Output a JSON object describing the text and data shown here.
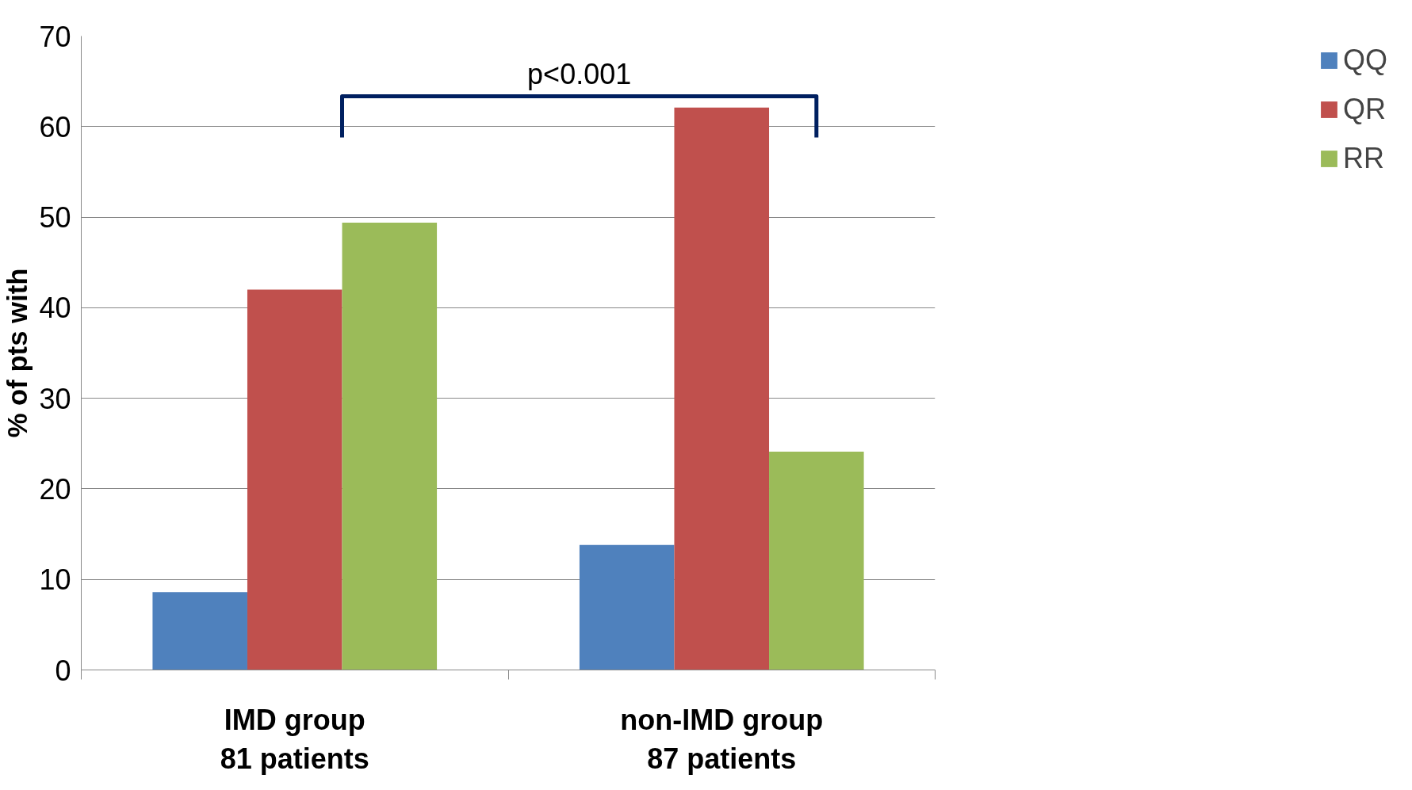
{
  "chart_data": {
    "type": "bar",
    "ylabel": "% of pts with",
    "categories": [
      "IMD group\n81 patients",
      "non-IMD group\n87 patients"
    ],
    "series": [
      {
        "name": "QQ",
        "color": "#4f81bd",
        "values": [
          8.6,
          13.8
        ]
      },
      {
        "name": "QR",
        "color": "#c0504d",
        "values": [
          42,
          62.1
        ]
      },
      {
        "name": "RR",
        "color": "#9bbb59",
        "values": [
          49.4,
          24.1
        ]
      }
    ],
    "ylim": [
      0,
      70
    ],
    "yticks": [
      0,
      10,
      20,
      30,
      40,
      50,
      60,
      70
    ],
    "grid": "y",
    "legend": "right",
    "annotations": [
      "p<0.001"
    ]
  }
}
